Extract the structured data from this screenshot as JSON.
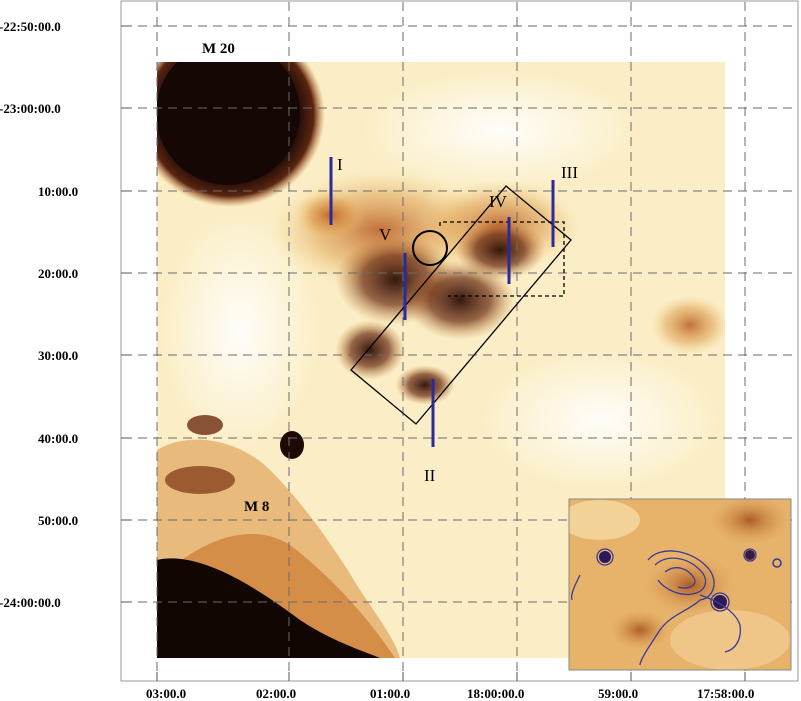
{
  "figure": {
    "dec_labels": [
      "-22:50:00.0",
      "-23:00:00.0",
      "10:00.0",
      "20:00.0",
      "30:00.0",
      "40:00.0",
      "50:00.0",
      "-24:00:00.0"
    ],
    "ra_labels": [
      "03:00.0",
      "02:00.0",
      "01:00.0",
      "18:00:00.0",
      "59:00.0",
      "17:58:00.0"
    ],
    "objects": {
      "m20": "M 20",
      "m8": "M 8"
    },
    "regions": [
      "I",
      "II",
      "III",
      "IV",
      "V"
    ],
    "colors": {
      "grid": "#6a6a6a",
      "marker_lines": "#2a2a9a",
      "contours": "#3a3a9a",
      "dark_emission": "#1a0a06",
      "background_emission": "#fbeec6"
    }
  }
}
